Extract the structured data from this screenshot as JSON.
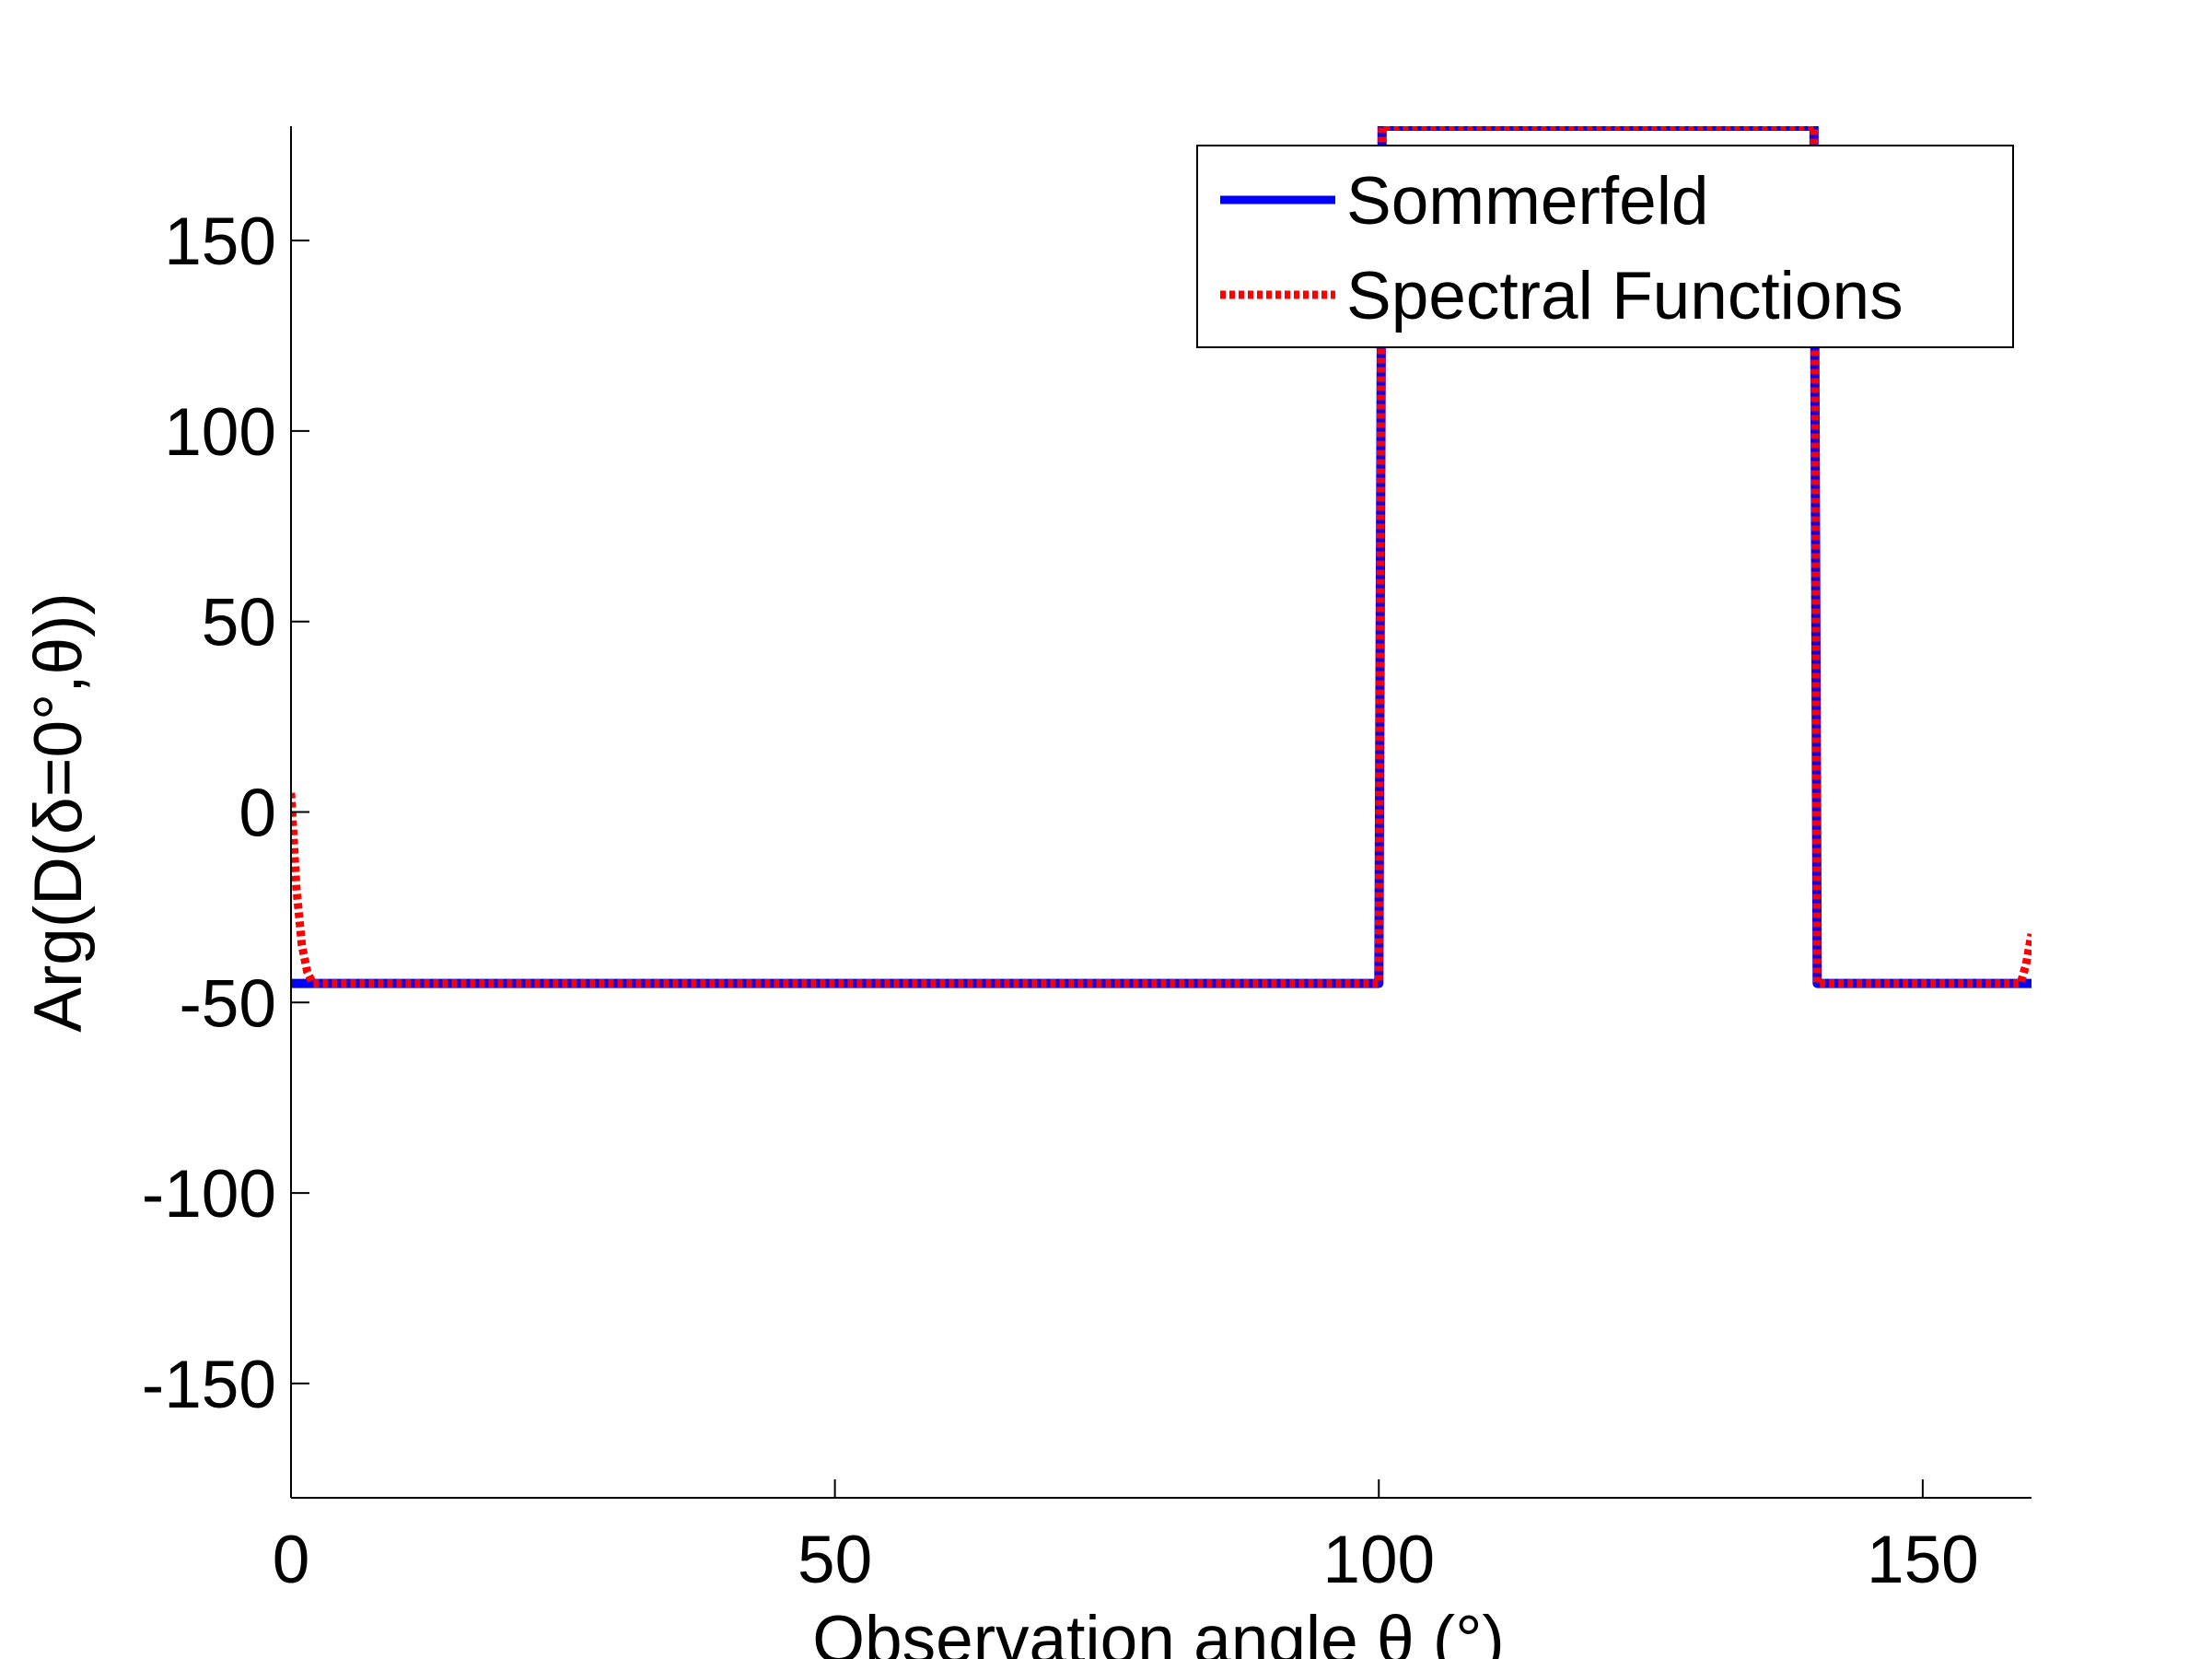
{
  "chart_data": {
    "type": "line",
    "title": "",
    "xlabel": "Observation angle θ (°)",
    "ylabel": "Arg(D(δ=0°,θ))",
    "xlim": [
      0,
      160
    ],
    "ylim": [
      -180,
      180
    ],
    "xticks": [
      0,
      50,
      100,
      150
    ],
    "yticks": [
      150,
      100,
      50,
      0,
      -50,
      -100,
      -150
    ],
    "xtick_labels": [
      "0",
      "50",
      "100",
      "150"
    ],
    "ytick_labels": [
      "150",
      "100",
      "50",
      "0",
      "-50",
      "-100",
      "-150"
    ],
    "grid": false,
    "legend_position": "top-right",
    "series": [
      {
        "name": "Sommerfeld",
        "color": "#0000ff",
        "style": "solid",
        "x": [
          0,
          99.8,
          100.0,
          100.3,
          140.0,
          140.3,
          140.6,
          160
        ],
        "y": [
          -45,
          -45,
          -45,
          180,
          180,
          -45,
          -45,
          -45
        ]
      },
      {
        "name": "Spectral Functions",
        "color": "#ff0000",
        "style": "dotted",
        "x": [
          0,
          0.2,
          0.5,
          1.0,
          1.5,
          2.0,
          3.0,
          99.8,
          100.0,
          100.3,
          140.0,
          140.3,
          140.6,
          159.0,
          159.5,
          160
        ],
        "y": [
          5,
          -5,
          -20,
          -35,
          -42,
          -45,
          -45,
          -45,
          -45,
          180,
          180,
          -45,
          -45,
          -45,
          -40,
          -32
        ]
      }
    ]
  }
}
